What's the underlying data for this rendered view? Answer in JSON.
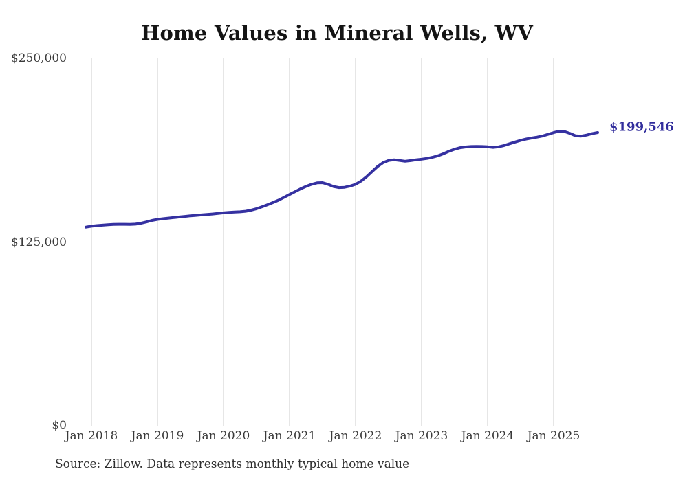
{
  "title": "Home Values in Mineral Wells, WV",
  "source_note": "Source: Zillow. Data represents monthly typical home value",
  "colors": {
    "line": "#3531a1",
    "end_label": "#312d9c",
    "grid": "#cccccc",
    "title_text": "#141414",
    "axis_text": "#3a3a3a",
    "background": "#ffffff"
  },
  "chart_data": {
    "type": "line",
    "title": "Home Values in Mineral Wells, WV",
    "xlabel": "",
    "ylabel": "",
    "ylim": [
      0,
      250000
    ],
    "grid": "vertical-only",
    "legend": "none",
    "end_label": "$199,546",
    "last_value": 199546,
    "y_ticks": [
      {
        "label": "$0",
        "value": 0
      },
      {
        "label": "$125,000",
        "value": 125000
      },
      {
        "label": "$250,000",
        "value": 250000
      }
    ],
    "x_ticks": [
      {
        "label": "Jan 2018",
        "month_index": 1
      },
      {
        "label": "Jan 2019",
        "month_index": 13
      },
      {
        "label": "Jan 2020",
        "month_index": 25
      },
      {
        "label": "Jan 2021",
        "month_index": 37
      },
      {
        "label": "Jan 2022",
        "month_index": 49
      },
      {
        "label": "Jan 2023",
        "month_index": 61
      },
      {
        "label": "Jan 2024",
        "month_index": 73
      },
      {
        "label": "Jan 2025",
        "month_index": 85
      }
    ],
    "x": [
      "2017-12",
      "2018-01",
      "2018-02",
      "2018-03",
      "2018-04",
      "2018-05",
      "2018-06",
      "2018-07",
      "2018-08",
      "2018-09",
      "2018-10",
      "2018-11",
      "2018-12",
      "2019-01",
      "2019-02",
      "2019-03",
      "2019-04",
      "2019-05",
      "2019-06",
      "2019-07",
      "2019-08",
      "2019-09",
      "2019-10",
      "2019-11",
      "2019-12",
      "2020-01",
      "2020-02",
      "2020-03",
      "2020-04",
      "2020-05",
      "2020-06",
      "2020-07",
      "2020-08",
      "2020-09",
      "2020-10",
      "2020-11",
      "2020-12",
      "2021-01",
      "2021-02",
      "2021-03",
      "2021-04",
      "2021-05",
      "2021-06",
      "2021-07",
      "2021-08",
      "2021-09",
      "2021-10",
      "2021-11",
      "2021-12",
      "2022-01",
      "2022-02",
      "2022-03",
      "2022-04",
      "2022-05",
      "2022-06",
      "2022-07",
      "2022-08",
      "2022-09",
      "2022-10",
      "2022-11",
      "2022-12",
      "2023-01",
      "2023-02",
      "2023-03",
      "2023-04",
      "2023-05",
      "2023-06",
      "2023-07",
      "2023-08",
      "2023-09",
      "2023-10",
      "2023-11",
      "2023-12",
      "2024-01",
      "2024-02",
      "2024-03",
      "2024-04",
      "2024-05",
      "2024-06",
      "2024-07",
      "2024-08",
      "2024-09",
      "2024-10",
      "2024-11",
      "2024-12",
      "2025-01",
      "2025-02",
      "2025-03",
      "2025-04",
      "2025-05",
      "2025-06",
      "2025-07",
      "2025-08",
      "2025-09"
    ],
    "values": [
      135200,
      135800,
      136200,
      136500,
      136800,
      137000,
      137100,
      137100,
      137000,
      137200,
      137800,
      138700,
      139700,
      140400,
      140900,
      141300,
      141700,
      142100,
      142500,
      142900,
      143200,
      143500,
      143800,
      144100,
      144500,
      144900,
      145200,
      145400,
      145600,
      146000,
      146700,
      147700,
      149000,
      150400,
      151900,
      153500,
      155400,
      157400,
      159300,
      161200,
      162900,
      164300,
      165300,
      165400,
      164300,
      162800,
      162100,
      162300,
      163100,
      164300,
      166500,
      169500,
      173000,
      176400,
      179000,
      180500,
      181000,
      180500,
      180000,
      180400,
      181000,
      181400,
      181900,
      182700,
      183800,
      185200,
      186800,
      188200,
      189200,
      189700,
      190000,
      190100,
      190000,
      189800,
      189400,
      189800,
      190700,
      191900,
      193100,
      194200,
      195100,
      195800,
      196400,
      197200,
      198300,
      199500,
      200400,
      200200,
      198900,
      197300,
      197100,
      197800,
      198800,
      199546
    ]
  }
}
